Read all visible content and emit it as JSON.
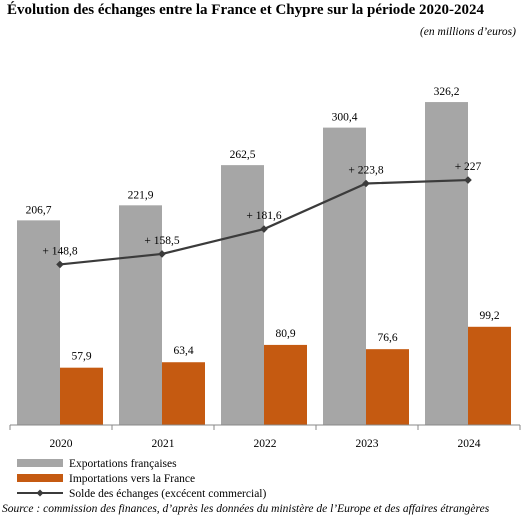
{
  "title": "Évolution des échanges entre la France et Chypre sur la période 2020-2024",
  "unit_note": "(en millions d’euros)",
  "source": "Source : commission des finances, d’après les données du ministère de l’Europe et des affaires étrangères",
  "colors": {
    "exports": "#a6a6a6",
    "imports": "#c55a11",
    "balance": "#3b3b3b"
  },
  "chart_data": {
    "type": "bar",
    "categories": [
      "2020",
      "2021",
      "2022",
      "2023",
      "2024"
    ],
    "series": [
      {
        "name": "Exportations françaises",
        "type": "bar",
        "values": [
          206.7,
          221.9,
          262.5,
          300.4,
          326.2
        ],
        "labels": [
          "206,7",
          "221,9",
          "262,5",
          "300,4",
          "326,2"
        ]
      },
      {
        "name": "Importations vers la France",
        "type": "bar",
        "values": [
          57.9,
          63.4,
          80.9,
          76.6,
          99.2
        ],
        "labels": [
          "57,9",
          "63,4",
          "80,9",
          "76,6",
          "99,2"
        ]
      },
      {
        "name": "Solde des échanges (excécent commercial)",
        "type": "line",
        "values": [
          148.8,
          158.5,
          181.6,
          223.8,
          227
        ],
        "labels": [
          "+ 148,8",
          "+ 158,5",
          "+ 181,6",
          "+ 223,8",
          "+ 227"
        ]
      }
    ],
    "ylim": [
      0,
      340
    ],
    "grid": false,
    "legend_position": "bottom-left"
  }
}
